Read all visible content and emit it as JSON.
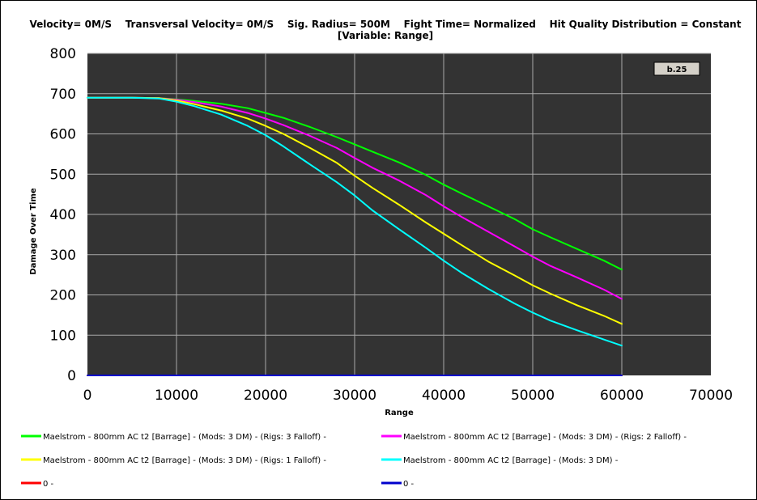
{
  "header": {
    "line1": "Velocity= 0M/S    Transversal Velocity= 0M/S    Sig. Radius= 500M    Fight Time= Normalized    Hit Quality Distribution = Constant",
    "line2": "[Variable: Range]"
  },
  "badge": "b.25",
  "colors": {
    "plot_background": "#333333",
    "gridline": "#aaaaaa"
  },
  "chart_data": {
    "type": "line",
    "xlabel": "Range",
    "ylabel": "Damage Over Time",
    "xlim": [
      0,
      70000
    ],
    "ylim": [
      0,
      800
    ],
    "xticks": [
      0,
      10000,
      20000,
      30000,
      40000,
      50000,
      60000,
      70000
    ],
    "yticks": [
      0,
      100,
      200,
      300,
      400,
      500,
      600,
      700,
      800
    ],
    "grid": true,
    "legend_position": "bottom",
    "x": [
      0,
      5000,
      8000,
      10000,
      12000,
      15000,
      18000,
      20000,
      22000,
      25000,
      28000,
      30000,
      32000,
      35000,
      38000,
      40000,
      42000,
      45000,
      48000,
      50000,
      52000,
      55000,
      58000,
      60000
    ],
    "series": [
      {
        "name": "Maelstrom - 800mm AC t2 [Barrage] - (Mods: 3 DM) - (Rigs: 3 Falloff) -",
        "color": "#00ff00",
        "values": [
          690,
          690,
          689,
          686,
          682,
          675,
          664,
          652,
          640,
          617,
          592,
          574,
          556,
          529,
          498,
          474,
          452,
          420,
          388,
          363,
          343,
          314,
          285,
          263
        ]
      },
      {
        "name": "Maelstrom - 800mm AC t2 [Barrage] - (Mods: 3 DM) - (Rigs: 2 Falloff) -",
        "color": "#ff00ff",
        "values": [
          690,
          690,
          689,
          685,
          679,
          668,
          652,
          638,
          622,
          595,
          565,
          540,
          516,
          484,
          448,
          420,
          394,
          357,
          320,
          295,
          272,
          243,
          213,
          190
        ]
      },
      {
        "name": "Maelstrom - 800mm AC t2 [Barrage] - (Mods: 3 DM) - (Rigs: 1 Falloff) -",
        "color": "#ffff00",
        "values": [
          690,
          690,
          689,
          683,
          674,
          658,
          638,
          620,
          600,
          565,
          528,
          496,
          466,
          424,
          380,
          352,
          324,
          283,
          248,
          224,
          203,
          174,
          148,
          128
        ]
      },
      {
        "name": "Maelstrom - 800mm AC t2 [Barrage] - (Mods: 3 DM) -",
        "color": "#00ffff",
        "values": [
          690,
          690,
          688,
          680,
          669,
          648,
          620,
          597,
          569,
          524,
          480,
          447,
          410,
          363,
          317,
          285,
          255,
          215,
          178,
          156,
          136,
          112,
          89,
          74
        ]
      },
      {
        "name": "0 -",
        "color": "#ff0000",
        "values": [
          0,
          0,
          0,
          0,
          0,
          0,
          0,
          0,
          0,
          0,
          0,
          0,
          0,
          0,
          0,
          0,
          0,
          0,
          0,
          0,
          0,
          0,
          0,
          0
        ]
      },
      {
        "name": "0 -",
        "color": "#0000cc",
        "values": [
          0,
          0,
          0,
          0,
          0,
          0,
          0,
          0,
          0,
          0,
          0,
          0,
          0,
          0,
          0,
          0,
          0,
          0,
          0,
          0,
          0,
          0,
          0,
          0
        ]
      }
    ]
  }
}
